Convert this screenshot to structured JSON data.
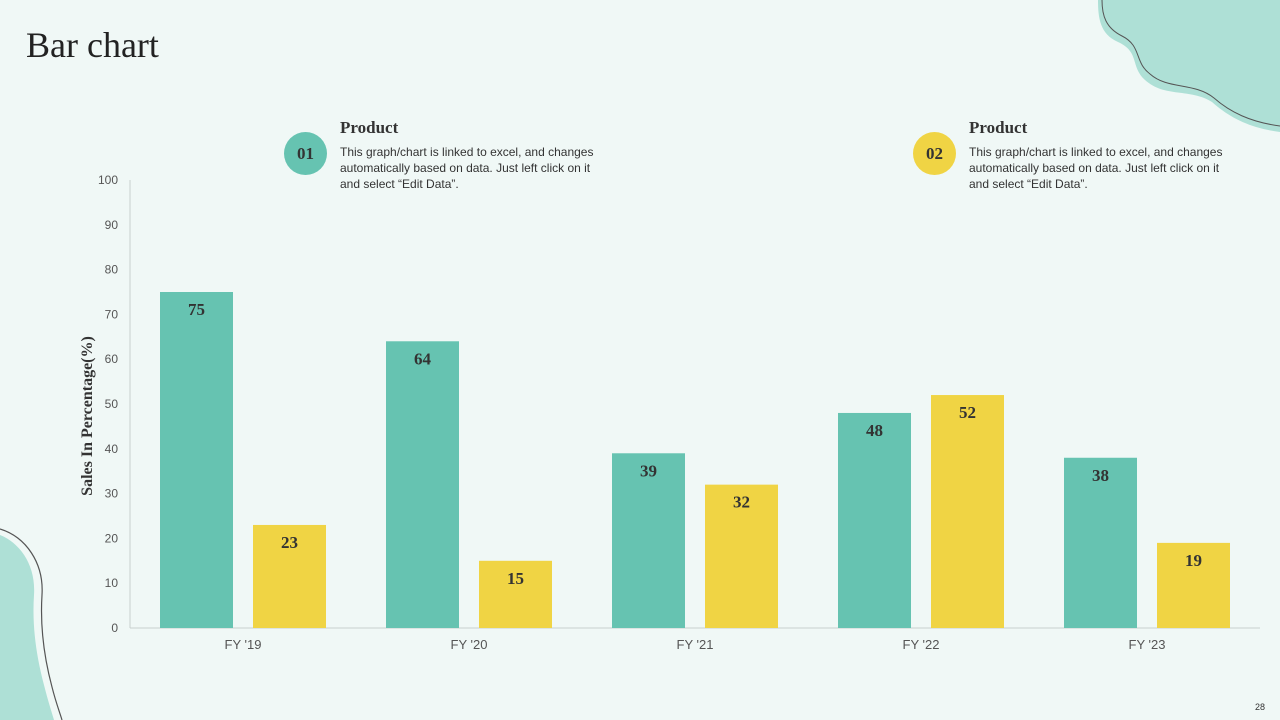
{
  "slide": {
    "title": "Bar chart",
    "page_number": "28"
  },
  "legend": [
    {
      "badge": "01",
      "heading": "Product",
      "description": "This graph/chart is linked to excel, and changes automatically based on data. Just left click on it and select “Edit Data”.",
      "color": "#66c3b1"
    },
    {
      "badge": "02",
      "heading": "Product",
      "description": "This graph/chart is linked to excel, and changes automatically based on data. Just left click on it and select “Edit Data”.",
      "color": "#f0d444"
    }
  ],
  "colors": {
    "background": "#f0f8f6",
    "teal": "#66c3b1",
    "yellow": "#f0d444",
    "decoration": "#aee0d6"
  },
  "chart_data": {
    "type": "bar",
    "categories": [
      "FY '19",
      "FY '20",
      "FY '21",
      "FY '22",
      "FY '23"
    ],
    "series": [
      {
        "values": [
          75,
          64,
          39,
          48,
          38
        ],
        "color": "#66c3b1"
      },
      {
        "values": [
          23,
          15,
          32,
          52,
          19
        ],
        "color": "#f0d444"
      }
    ],
    "ylabel": "Sales In Percentage(%)",
    "ylim": [
      0,
      100
    ],
    "yticks": [
      0,
      10,
      20,
      30,
      40,
      50,
      60,
      70,
      80,
      90,
      100
    ],
    "data_labels": true,
    "grid": false
  }
}
